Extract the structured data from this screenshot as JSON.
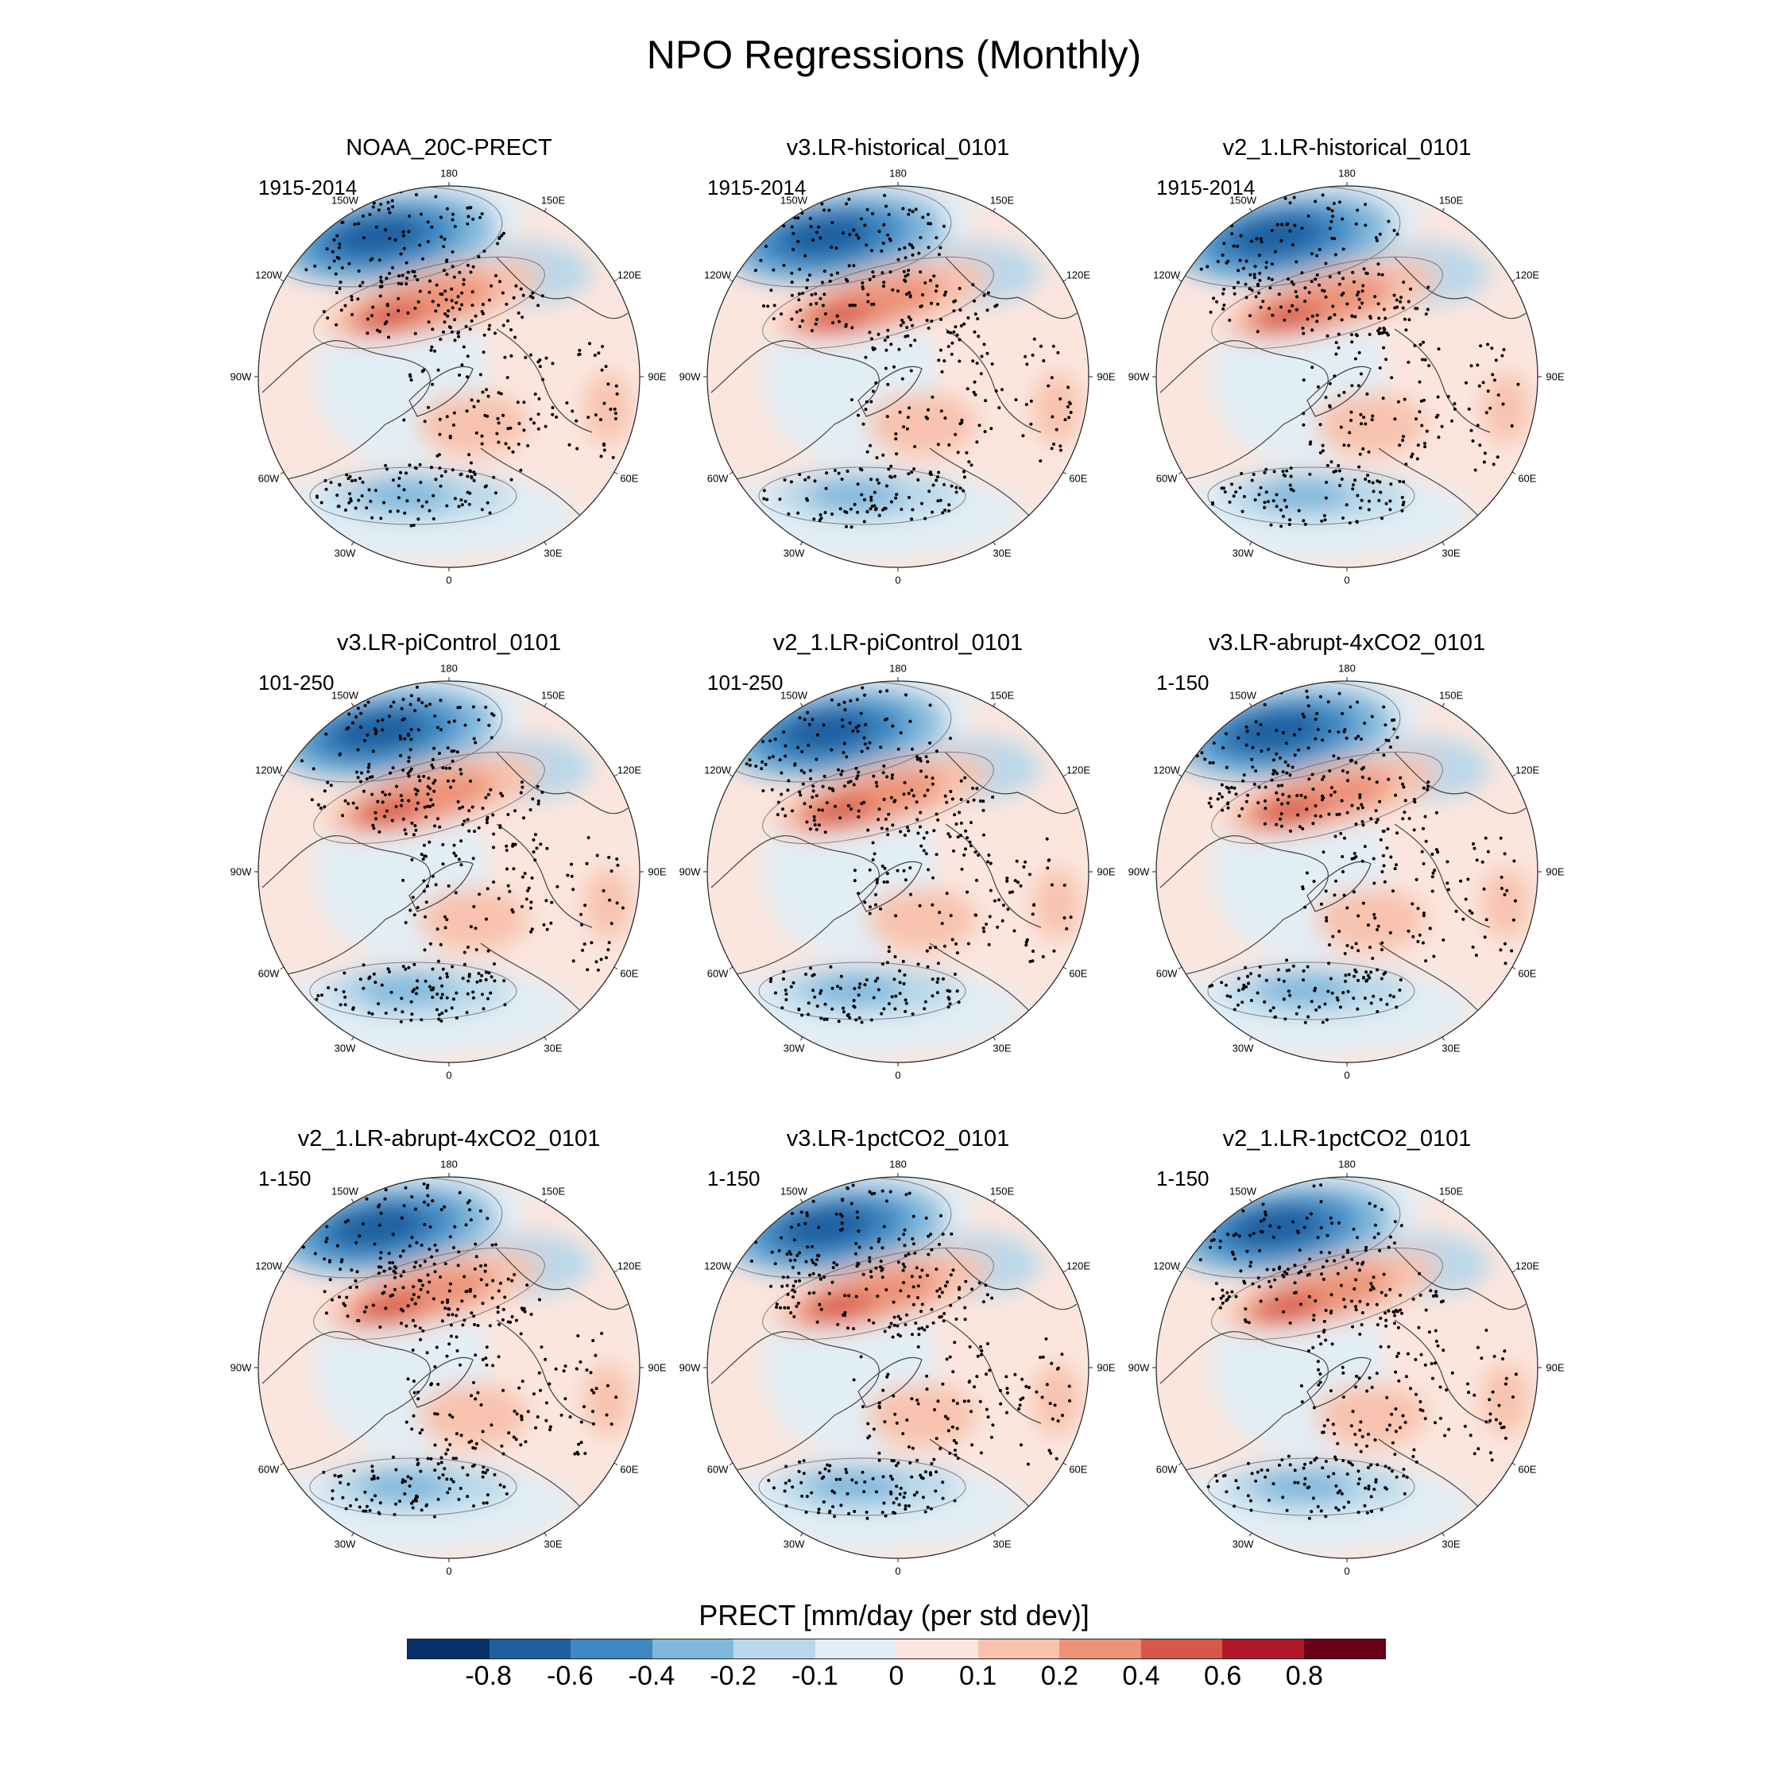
{
  "title": "NPO Regressions (Monthly)",
  "lon_labels": [
    "180",
    "150E",
    "120E",
    "90E",
    "60E",
    "30E",
    "0",
    "30W",
    "60W",
    "90W",
    "120W",
    "150W"
  ],
  "panels": [
    {
      "title": "NOAA_20C-PRECT",
      "period": "1915-2014"
    },
    {
      "title": "v3.LR-historical_0101",
      "period": "1915-2014"
    },
    {
      "title": "v2_1.LR-historical_0101",
      "period": "1915-2014"
    },
    {
      "title": "v3.LR-piControl_0101",
      "period": "101-250"
    },
    {
      "title": "v2_1.LR-piControl_0101",
      "period": "101-250"
    },
    {
      "title": "v3.LR-abrupt-4xCO2_0101",
      "period": "1-150"
    },
    {
      "title": "v2_1.LR-abrupt-4xCO2_0101",
      "period": "1-150"
    },
    {
      "title": "v3.LR-1pctCO2_0101",
      "period": "1-150"
    },
    {
      "title": "v2_1.LR-1pctCO2_0101",
      "period": "1-150"
    }
  ],
  "colorbar": {
    "title": "PRECT [mm/day (per std dev)]",
    "colors": [
      "#08306b",
      "#1d5fa0",
      "#3e88c2",
      "#7fb8dc",
      "#b9d8ea",
      "#e2eef5",
      "#fbe6de",
      "#f8c2ad",
      "#ec9277",
      "#d6584a",
      "#b1182a",
      "#6b0119"
    ],
    "tick_labels": [
      "-0.8",
      "-0.6",
      "-0.4",
      "-0.2",
      "-0.1",
      "0",
      "0.1",
      "0.2",
      "0.4",
      "0.6",
      "0.8"
    ]
  }
}
